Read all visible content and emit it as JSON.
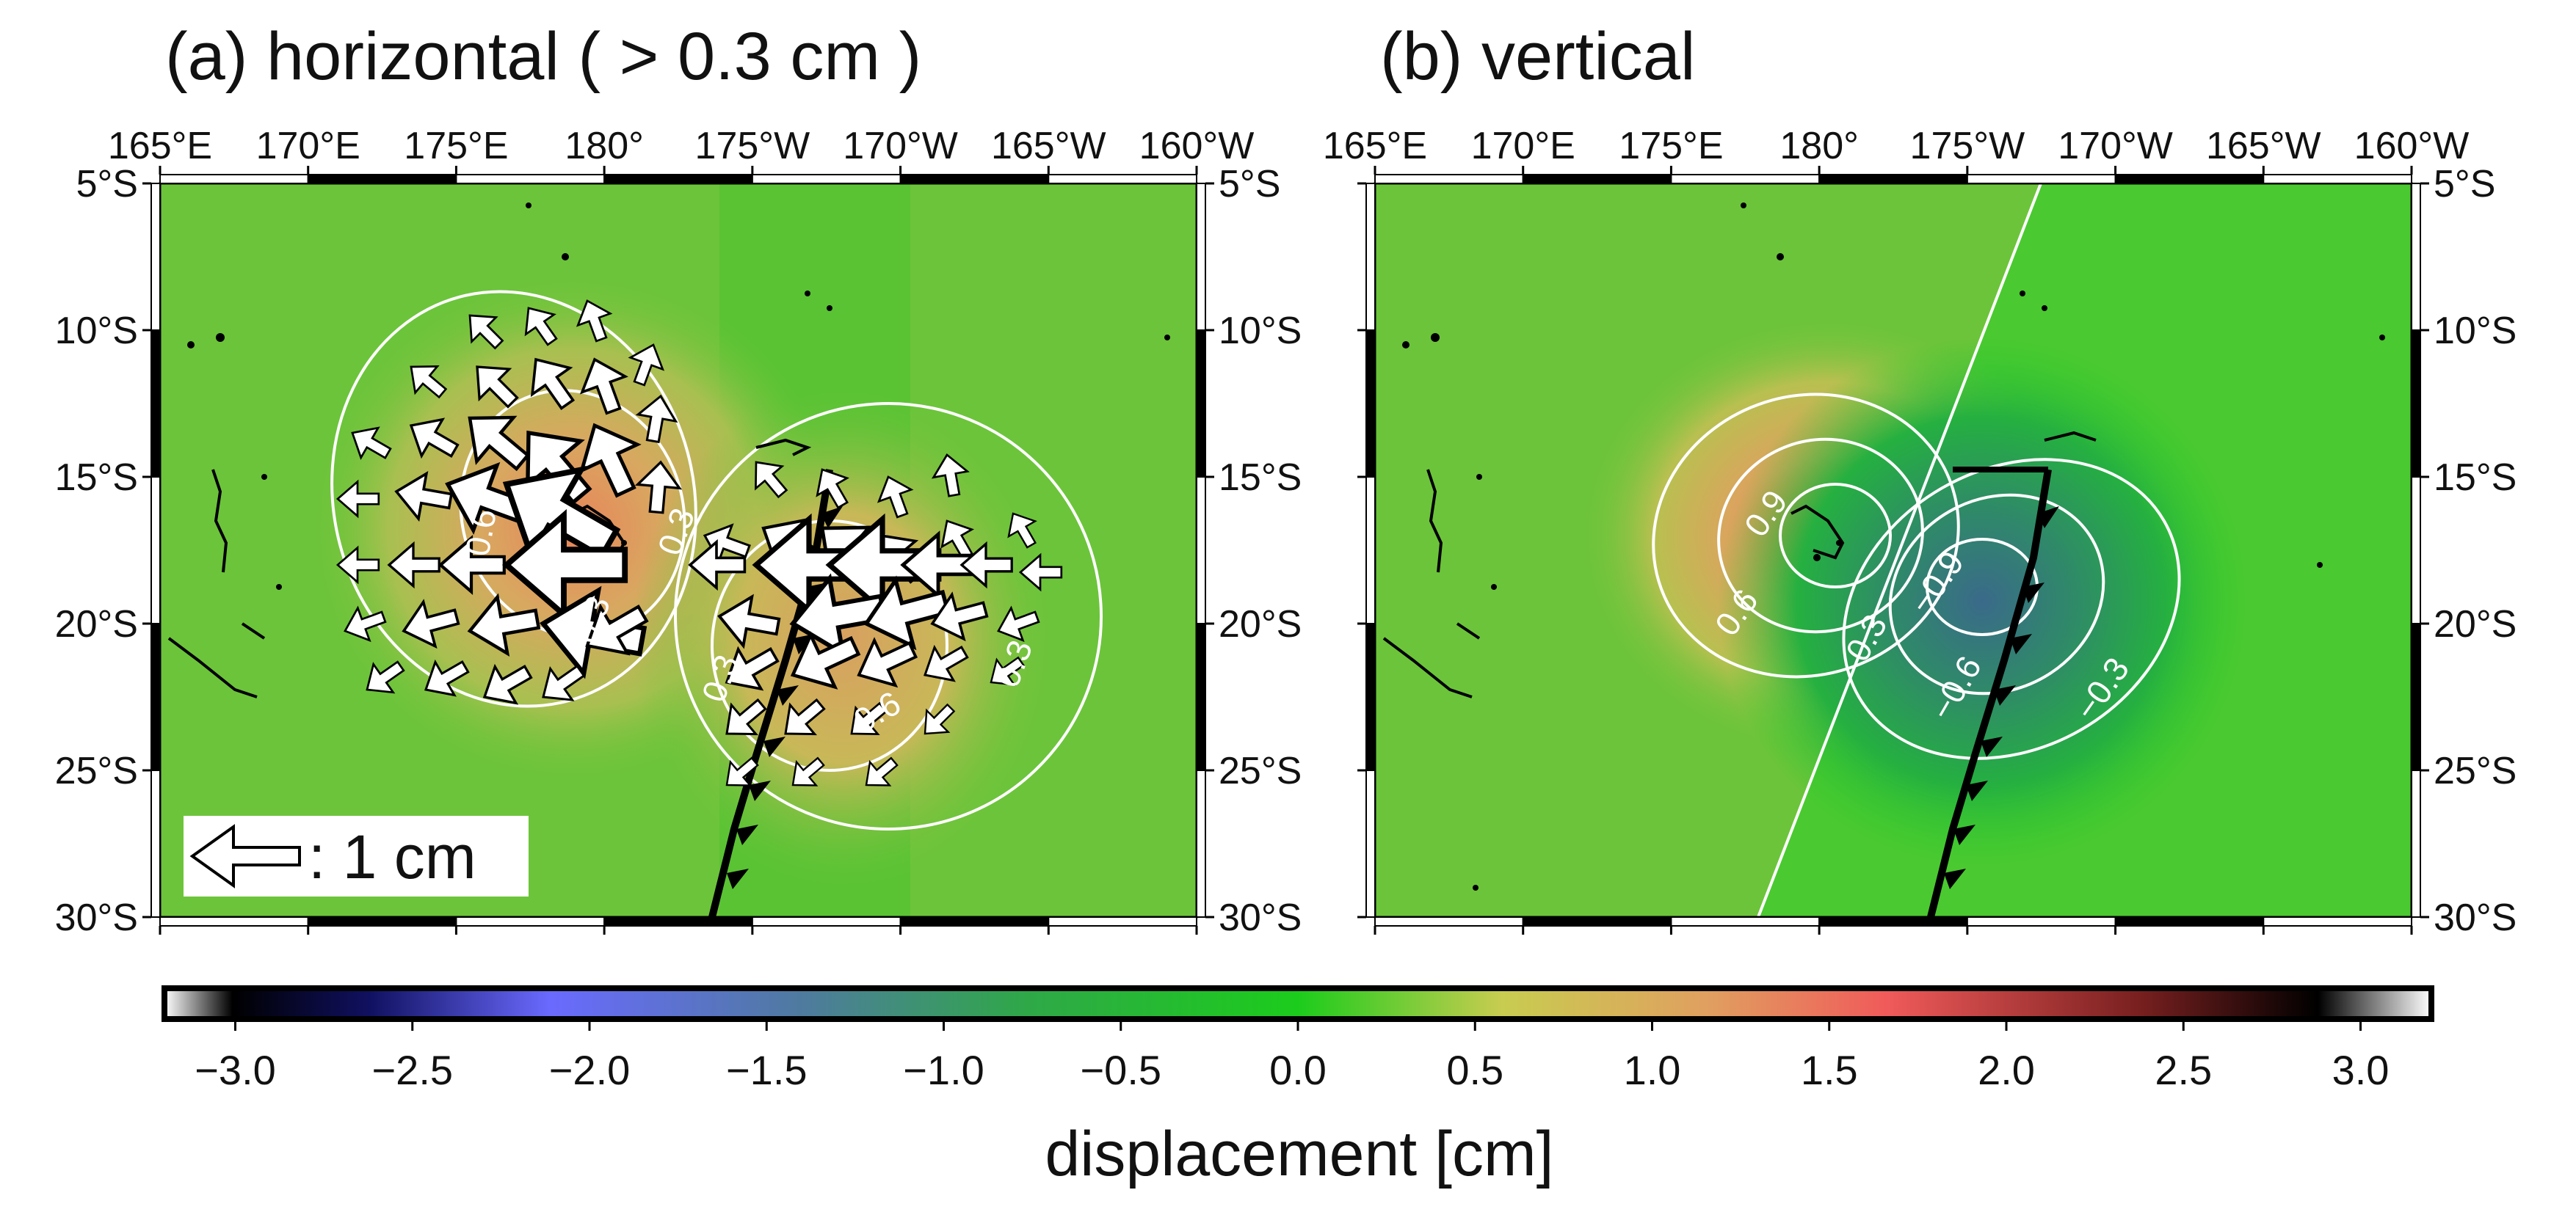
{
  "chart_data": [
    {
      "type": "heatmap",
      "panel": "a",
      "title": "(a) horizontal ( > 0.3 cm )",
      "x_ticks": [
        "165°E",
        "170°E",
        "175°E",
        "180°",
        "175°W",
        "170°W",
        "165°W",
        "160°W"
      ],
      "y_ticks": [
        "5°S",
        "10°S",
        "15°S",
        "20°S",
        "25°S",
        "30°S"
      ],
      "lon_range_east": [
        165,
        200
      ],
      "lat_range": [
        -5,
        -30
      ],
      "field": "horizontal displacement magnitude",
      "contour_labels": [
        "0.3",
        "0.6",
        "0.3",
        "0.3",
        "0.6",
        "0.3"
      ],
      "vectors_shown_above_cm": 0.3,
      "legend": {
        "arrow_length_cm": 1,
        "text": ": 1 cm"
      }
    },
    {
      "type": "heatmap",
      "panel": "b",
      "title": "(b) vertical",
      "x_ticks": [
        "165°E",
        "170°E",
        "175°E",
        "180°",
        "175°W",
        "170°W",
        "165°W",
        "160°W"
      ],
      "y_ticks": [
        "5°S",
        "10°S",
        "15°S",
        "20°S",
        "25°S",
        "30°S"
      ],
      "lon_range_east": [
        165,
        200
      ],
      "lat_range": [
        -5,
        -30
      ],
      "field": "vertical displacement",
      "uplift_center_cm": 1.5,
      "subsidence_center_cm": -1.3,
      "contour_labels": [
        "0.9",
        "0.6",
        "0.3",
        "−0.9",
        "−0.6",
        "−0.3"
      ]
    }
  ],
  "colorbar": {
    "title": "displacement [cm]",
    "min": -3.2,
    "max": 3.2,
    "ticks": [
      "−3.0",
      "−2.5",
      "−2.0",
      "−1.5",
      "−1.0",
      "−0.5",
      "0.0",
      "0.5",
      "1.0",
      "1.5",
      "2.0",
      "2.5",
      "3.0"
    ],
    "tick_values": [
      -3.0,
      -2.5,
      -2.0,
      -1.5,
      -1.0,
      -0.5,
      0.0,
      0.5,
      1.0,
      1.5,
      2.0,
      2.5,
      3.0
    ],
    "colors": [
      "#ffffff",
      "#000000",
      "#1a1a7a",
      "#6a6aff",
      "#4b70a8",
      "#2aa55a",
      "#2fcf2f",
      "#cccc50",
      "#e0a060",
      "#f06060",
      "#a03030",
      "#000000",
      "#ffffff"
    ]
  }
}
